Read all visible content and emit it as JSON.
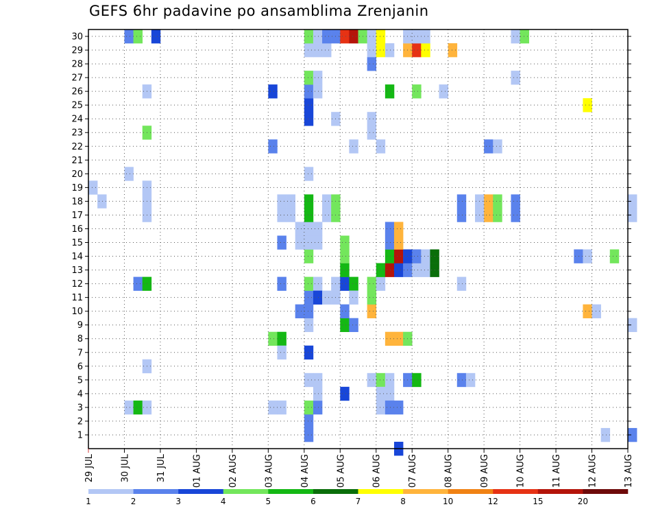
{
  "title": "GEFS 6hr padavine po ansamblima Zrenjanin",
  "chart_data": {
    "type": "heatmap",
    "title": "GEFS 6hr padavine po ansamblima Zrenjanin",
    "x_ticks": [
      "29 JUL",
      "30 JUL",
      "31 JUL",
      "01 AUG",
      "02 AUG",
      "03 AUG",
      "04 AUG",
      "05 AUG",
      "06 AUG",
      "07 AUG",
      "08 AUG",
      "09 AUG",
      "10 AUG",
      "11 AUG",
      "12 AUG",
      "13 AUG"
    ],
    "y_ticks": [
      1,
      2,
      3,
      4,
      5,
      6,
      7,
      8,
      9,
      10,
      11,
      12,
      13,
      14,
      15,
      16,
      17,
      18,
      19,
      20,
      21,
      22,
      23,
      24,
      25,
      26,
      27,
      28,
      29,
      30
    ],
    "x_steps_per_day": 4,
    "ylim": [
      0,
      30
    ],
    "grid": true,
    "colorbar": {
      "bounds": [
        1,
        2,
        3,
        4,
        5,
        6,
        7,
        8,
        10,
        12,
        15,
        20
      ],
      "labels": [
        "1",
        "2",
        "3",
        "4",
        "5",
        "6",
        "7",
        "8",
        "10",
        "12",
        "15",
        "20"
      ],
      "colors": [
        "#b3c7f5",
        "#5a82ec",
        "#1846d8",
        "#73e65c",
        "#14b814",
        "#0a6e0a",
        "#ffff00",
        "#ffb43c",
        "#f08214",
        "#e63214",
        "#b4140a",
        "#6e0a0a"
      ]
    },
    "cells": [
      [
        0,
        19,
        0
      ],
      [
        1,
        18,
        0
      ],
      [
        4,
        3,
        0
      ],
      [
        5,
        3,
        4
      ],
      [
        6,
        3,
        0
      ],
      [
        5,
        12,
        1
      ],
      [
        6,
        12,
        4
      ],
      [
        6,
        17,
        0
      ],
      [
        6,
        18,
        0
      ],
      [
        6,
        19,
        0
      ],
      [
        4,
        20,
        0
      ],
      [
        6,
        23,
        3
      ],
      [
        6,
        26,
        0
      ],
      [
        6,
        6,
        0
      ],
      [
        7,
        30,
        2
      ],
      [
        4,
        30,
        1
      ],
      [
        5,
        30,
        3
      ],
      [
        20,
        3,
        0
      ],
      [
        21,
        3,
        0
      ],
      [
        20,
        8,
        3
      ],
      [
        21,
        8,
        4
      ],
      [
        21,
        7,
        0
      ],
      [
        21,
        12,
        1
      ],
      [
        20,
        22,
        1
      ],
      [
        21,
        15,
        1
      ],
      [
        21,
        17,
        0
      ],
      [
        21,
        18,
        0
      ],
      [
        22,
        17,
        0
      ],
      [
        22,
        18,
        0
      ],
      [
        20,
        26,
        2
      ],
      [
        24,
        1,
        1
      ],
      [
        24,
        2,
        1
      ],
      [
        24,
        3,
        3
      ],
      [
        25,
        3,
        1
      ],
      [
        25,
        4,
        0
      ],
      [
        25,
        5,
        0
      ],
      [
        24,
        5,
        0
      ],
      [
        24,
        7,
        2
      ],
      [
        24,
        9,
        0
      ],
      [
        24,
        10,
        1
      ],
      [
        23,
        10,
        1
      ],
      [
        24,
        11,
        1
      ],
      [
        24,
        12,
        3
      ],
      [
        25,
        12,
        0
      ],
      [
        25,
        11,
        2
      ],
      [
        26,
        11,
        0
      ],
      [
        24,
        14,
        3
      ],
      [
        24,
        15,
        0
      ],
      [
        24,
        16,
        0
      ],
      [
        23,
        15,
        0
      ],
      [
        23,
        16,
        0
      ],
      [
        25,
        15,
        0
      ],
      [
        25,
        16,
        0
      ],
      [
        24,
        17,
        4
      ],
      [
        24,
        18,
        4
      ],
      [
        26,
        17,
        0
      ],
      [
        26,
        18,
        0
      ],
      [
        27,
        17,
        3
      ],
      [
        27,
        18,
        3
      ],
      [
        24,
        20,
        0
      ],
      [
        24,
        24,
        2
      ],
      [
        24,
        25,
        2
      ],
      [
        24,
        26,
        1
      ],
      [
        25,
        26,
        0
      ],
      [
        24,
        27,
        3
      ],
      [
        25,
        27,
        0
      ],
      [
        24,
        29,
        0
      ],
      [
        25,
        29,
        0
      ],
      [
        26,
        29,
        0
      ],
      [
        24,
        30,
        3
      ],
      [
        25,
        30,
        0
      ],
      [
        26,
        30,
        1
      ],
      [
        27,
        30,
        1
      ],
      [
        28,
        30,
        9
      ],
      [
        29,
        30,
        10
      ],
      [
        30,
        30,
        3
      ],
      [
        28,
        4,
        2
      ],
      [
        28,
        9,
        4
      ],
      [
        29,
        9,
        1
      ],
      [
        28,
        10,
        1
      ],
      [
        27,
        12,
        0
      ],
      [
        28,
        12,
        2
      ],
      [
        29,
        12,
        4
      ],
      [
        28,
        13,
        4
      ],
      [
        28,
        14,
        3
      ],
      [
        28,
        15,
        3
      ],
      [
        29,
        11,
        0
      ],
      [
        27,
        11,
        0
      ],
      [
        27,
        24,
        0
      ],
      [
        29,
        22,
        0
      ],
      [
        31,
        5,
        0
      ],
      [
        32,
        5,
        3
      ],
      [
        33,
        5,
        0
      ],
      [
        32,
        4,
        0
      ],
      [
        33,
        4,
        0
      ],
      [
        32,
        3,
        0
      ],
      [
        33,
        3,
        1
      ],
      [
        34,
        3,
        1
      ],
      [
        31,
        10,
        7
      ],
      [
        31,
        11,
        3
      ],
      [
        31,
        12,
        3
      ],
      [
        32,
        12,
        0
      ],
      [
        31,
        23,
        0
      ],
      [
        31,
        24,
        0
      ],
      [
        32,
        22,
        0
      ],
      [
        31,
        28,
        1
      ],
      [
        31,
        29,
        0
      ],
      [
        31,
        30,
        0
      ],
      [
        32,
        13,
        4
      ],
      [
        33,
        13,
        10
      ],
      [
        34,
        13,
        2
      ],
      [
        35,
        13,
        1
      ],
      [
        36,
        13,
        0
      ],
      [
        37,
        13,
        0
      ],
      [
        38,
        13,
        5
      ],
      [
        33,
        14,
        4
      ],
      [
        34,
        14,
        10
      ],
      [
        35,
        14,
        2
      ],
      [
        36,
        14,
        1
      ],
      [
        37,
        14,
        0
      ],
      [
        38,
        14,
        5
      ],
      [
        33,
        8,
        7
      ],
      [
        34,
        8,
        7
      ],
      [
        35,
        8,
        3
      ],
      [
        33,
        15,
        1
      ],
      [
        34,
        15,
        7
      ],
      [
        33,
        16,
        1
      ],
      [
        34,
        16,
        7
      ],
      [
        33,
        26,
        4
      ],
      [
        36,
        26,
        3
      ],
      [
        39,
        26,
        0
      ],
      [
        32,
        29,
        6
      ],
      [
        32,
        30,
        6
      ],
      [
        33,
        29,
        0
      ],
      [
        35,
        29,
        7
      ],
      [
        36,
        29,
        9
      ],
      [
        37,
        29,
        6
      ],
      [
        35,
        30,
        0
      ],
      [
        36,
        30,
        0
      ],
      [
        37,
        30,
        0
      ],
      [
        40,
        29,
        7
      ],
      [
        34,
        0,
        2
      ],
      [
        35,
        5,
        1
      ],
      [
        36,
        5,
        4
      ],
      [
        41,
        12,
        0
      ],
      [
        41,
        17,
        1
      ],
      [
        41,
        18,
        1
      ],
      [
        41,
        5,
        1
      ],
      [
        42,
        5,
        0
      ],
      [
        43,
        17,
        0
      ],
      [
        43,
        18,
        0
      ],
      [
        44,
        17,
        7
      ],
      [
        44,
        18,
        7
      ],
      [
        45,
        17,
        3
      ],
      [
        45,
        18,
        3
      ],
      [
        44,
        22,
        1
      ],
      [
        45,
        22,
        0
      ],
      [
        47,
        17,
        1
      ],
      [
        47,
        18,
        1
      ],
      [
        47,
        27,
        0
      ],
      [
        47,
        30,
        0
      ],
      [
        48,
        30,
        3
      ],
      [
        54,
        14,
        1
      ],
      [
        55,
        14,
        0
      ],
      [
        58,
        14,
        3
      ],
      [
        55,
        10,
        7
      ],
      [
        56,
        10,
        0
      ],
      [
        55,
        25,
        6
      ],
      [
        57,
        1,
        0
      ],
      [
        60,
        1,
        1
      ],
      [
        60,
        9,
        0
      ],
      [
        60,
        17,
        0
      ],
      [
        60,
        18,
        0
      ]
    ]
  }
}
